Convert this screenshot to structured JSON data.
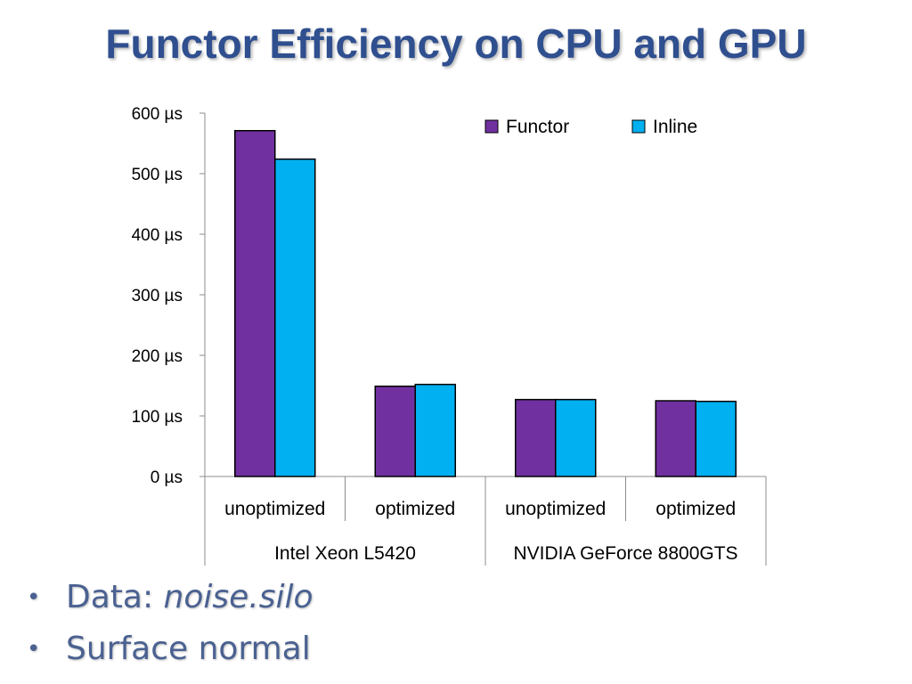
{
  "slide": {
    "title": "Functor Efficiency on CPU and GPU",
    "bullets": [
      {
        "label": "Data: ",
        "emphasis": "noise.silo"
      },
      {
        "label": "Surface normal",
        "emphasis": ""
      }
    ]
  },
  "chart_data": {
    "type": "bar",
    "title": "",
    "xlabel": "",
    "ylabel": "",
    "ylim": [
      0,
      600
    ],
    "yticks": [
      0,
      100,
      200,
      300,
      400,
      500,
      600
    ],
    "ytick_suffix": " µs",
    "grid": false,
    "legend_position": "top-right",
    "groups": [
      {
        "label": "Intel Xeon L5420",
        "categories": [
          "unoptimized",
          "optimized"
        ]
      },
      {
        "label": "NVIDIA GeForce 8800GTS",
        "categories": [
          "unoptimized",
          "optimized"
        ]
      }
    ],
    "categories": [
      "unoptimized",
      "optimized",
      "unoptimized",
      "optimized"
    ],
    "series": [
      {
        "name": "Functor",
        "color": "#7030a0",
        "values": [
          571,
          149,
          127,
          125
        ]
      },
      {
        "name": "Inline",
        "color": "#00b0f0",
        "values": [
          524,
          152,
          127,
          124
        ]
      }
    ]
  }
}
